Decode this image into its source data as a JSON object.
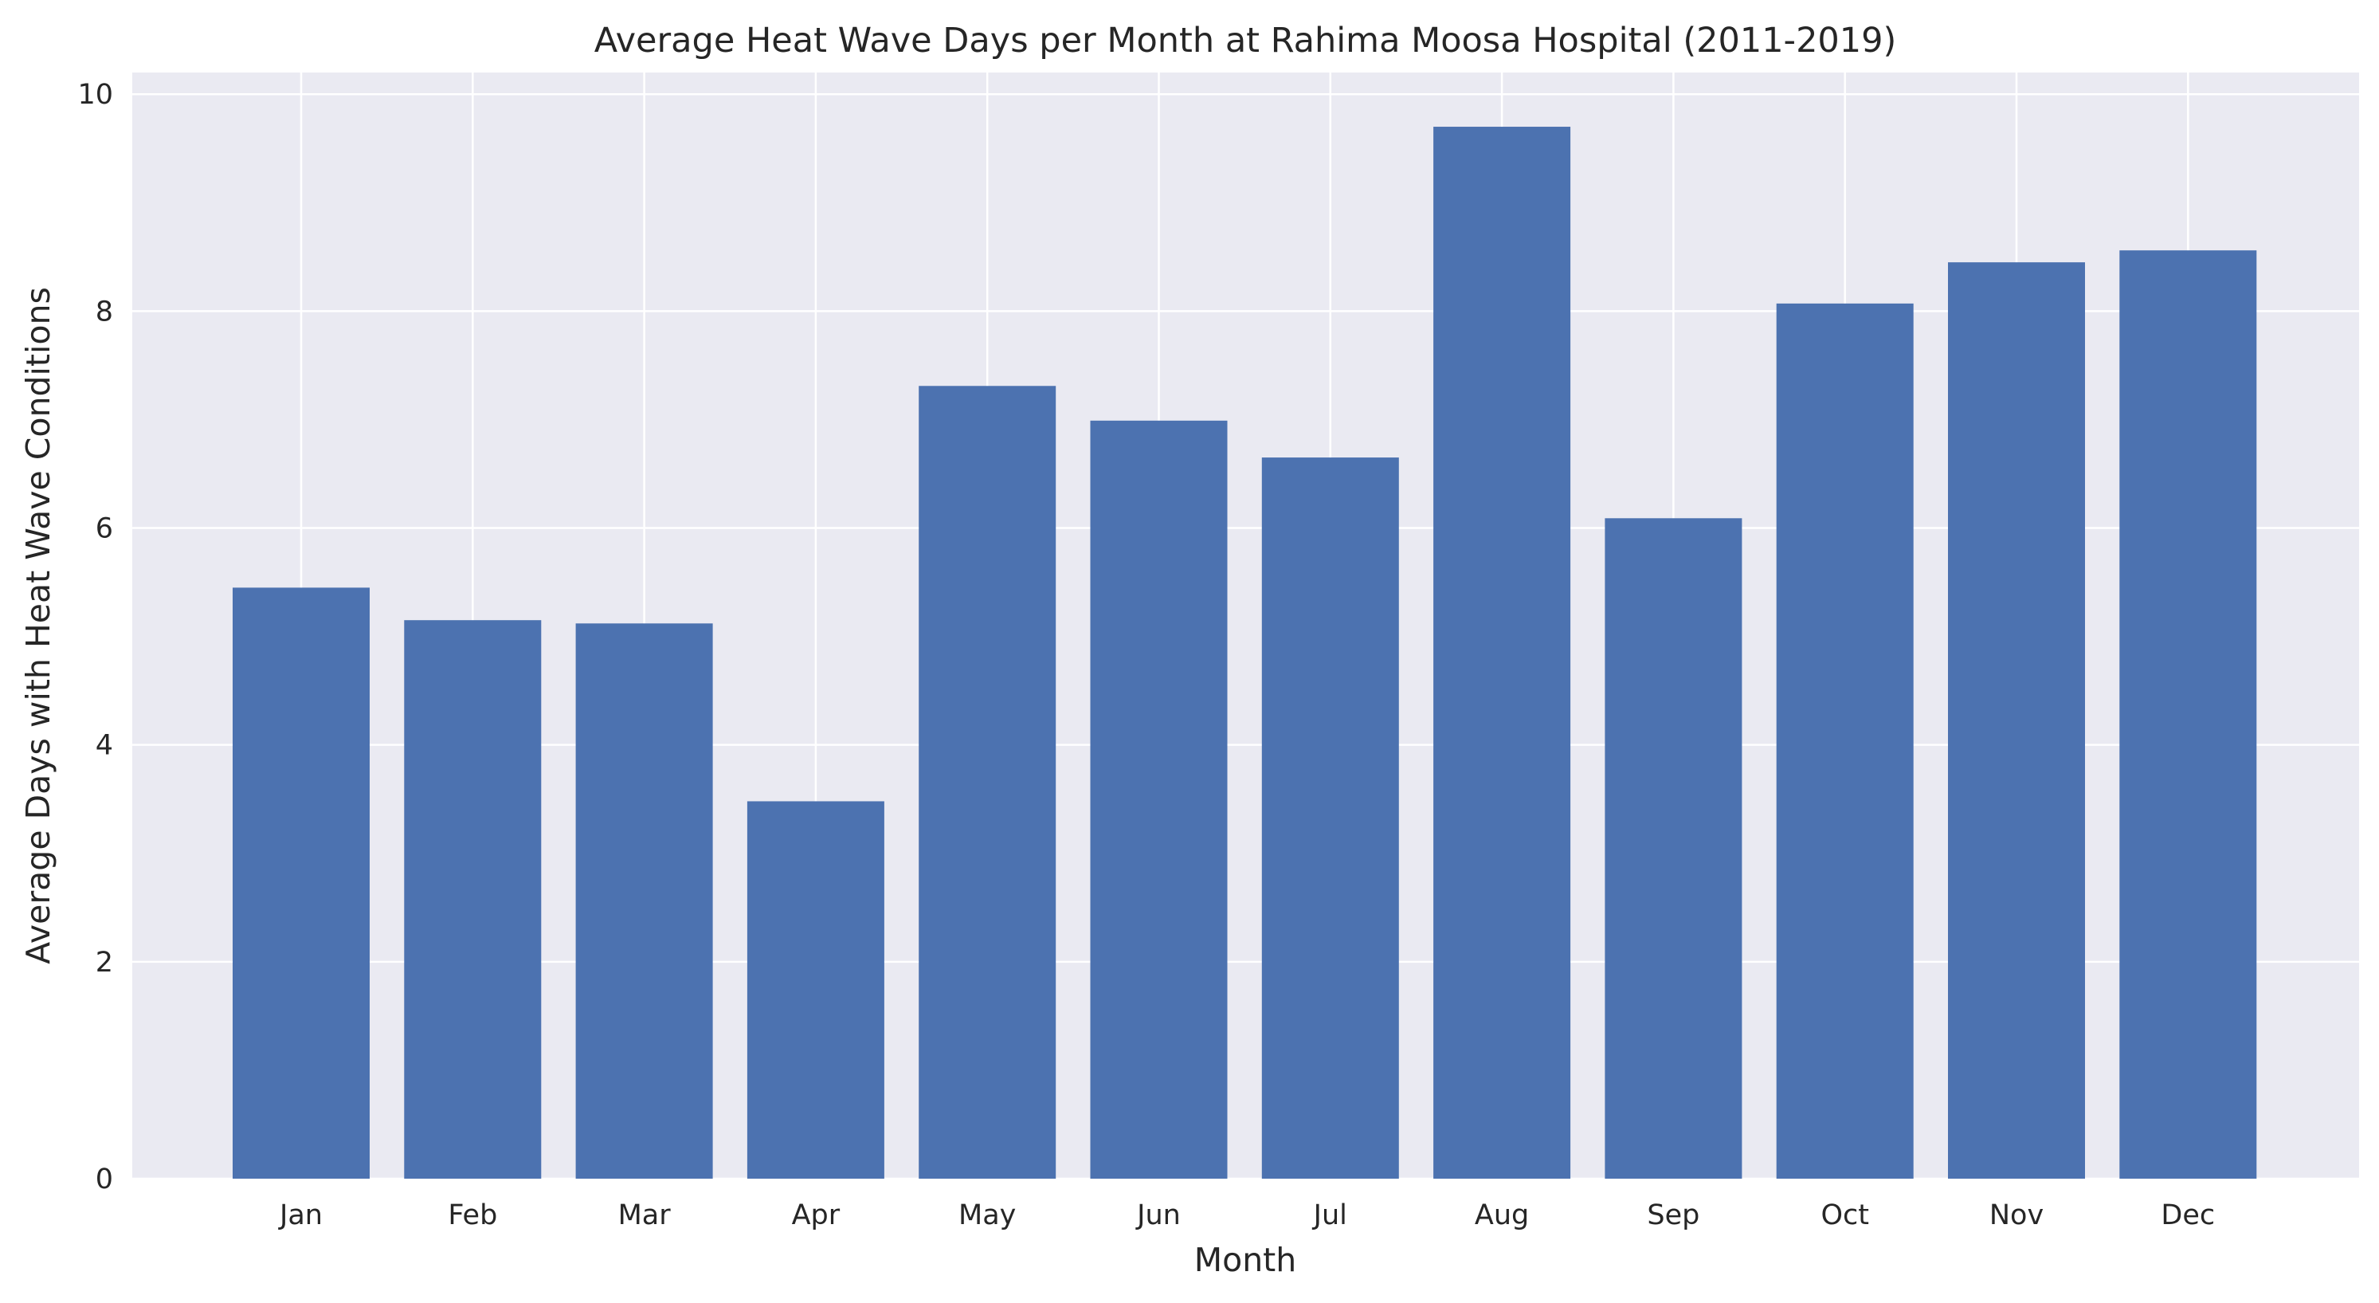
{
  "chart_data": {
    "type": "bar",
    "title": "Average Heat Wave Days per Month at Rahima Moosa Hospital (2011-2019)",
    "xlabel": "Month",
    "ylabel": "Average Days with Heat Wave Conditions",
    "categories": [
      "Jan",
      "Feb",
      "Mar",
      "Apr",
      "May",
      "Jun",
      "Jul",
      "Aug",
      "Sep",
      "Oct",
      "Nov",
      "Dec"
    ],
    "values": [
      5.45,
      5.15,
      5.12,
      3.48,
      7.31,
      6.99,
      6.65,
      9.7,
      6.09,
      8.07,
      8.45,
      8.56
    ],
    "ylim": [
      0,
      10.2
    ],
    "yticks": [
      "0",
      "2",
      "4",
      "6",
      "8",
      "10"
    ],
    "grid": true,
    "legend": "none",
    "colors": {
      "bar": "#4c72b0",
      "plot_background": "#eaeaf2",
      "grid": "#ffffff",
      "text": "#262626"
    }
  }
}
